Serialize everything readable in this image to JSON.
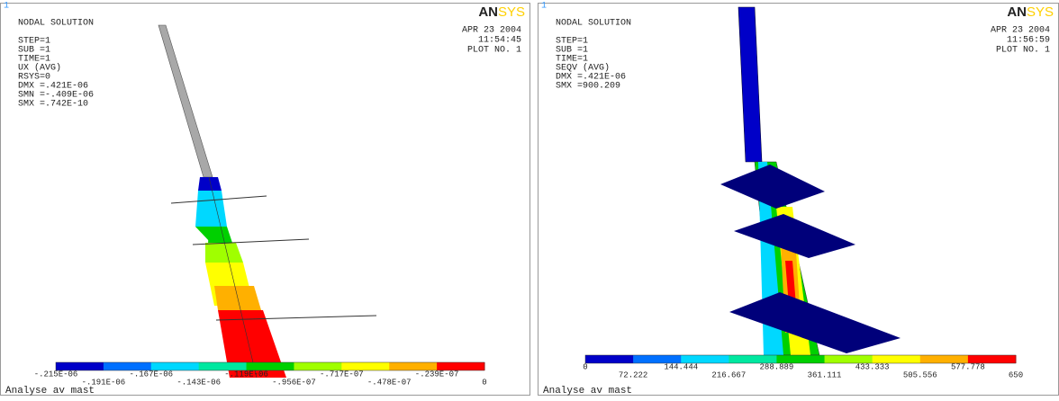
{
  "panels": [
    {
      "window_number": "1",
      "header_lines": [
        "NODAL SOLUTION",
        "STEP=1",
        "SUB =1",
        "TIME=1",
        "UX       (AVG)",
        "RSYS=0",
        "DMX =.421E-06",
        "SMN =-.409E-06",
        "SMX =.742E-10"
      ],
      "logo": {
        "bold": "AN",
        "light": "SYS"
      },
      "date_lines": [
        "APR 23 2004",
        "11:54:45",
        "PLOT NO.   1"
      ],
      "legend_labels": [
        "-.215E-06",
        "-.191E-06",
        "-.167E-06",
        "-.143E-06",
        "-.119E-06",
        "-.956E-07",
        "-.717E-07",
        "-.478E-07",
        "-.239E-07",
        "0"
      ],
      "footer": "Analyse av mast"
    },
    {
      "window_number": "1",
      "header_lines": [
        "NODAL SOLUTION",
        "STEP=1",
        "SUB =1",
        "TIME=1",
        "SEQV     (AVG)",
        "DMX =.421E-06",
        "SMX =900.209"
      ],
      "logo": {
        "bold": "AN",
        "light": "SYS"
      },
      "date_lines": [
        "APR 23 2004",
        "11:56:59",
        "PLOT NO.   1"
      ],
      "legend_labels": [
        "0",
        "72.222",
        "144.444",
        "216.667",
        "288.889",
        "361.111",
        "433.333",
        "505.556",
        "577.778",
        "650"
      ],
      "footer": "Analyse av mast"
    }
  ],
  "legend_colors": [
    "#0000c8",
    "#0070ff",
    "#00d8ff",
    "#00e8a0",
    "#00d000",
    "#a0ff00",
    "#ffff00",
    "#ffb000",
    "#ff0000"
  ]
}
